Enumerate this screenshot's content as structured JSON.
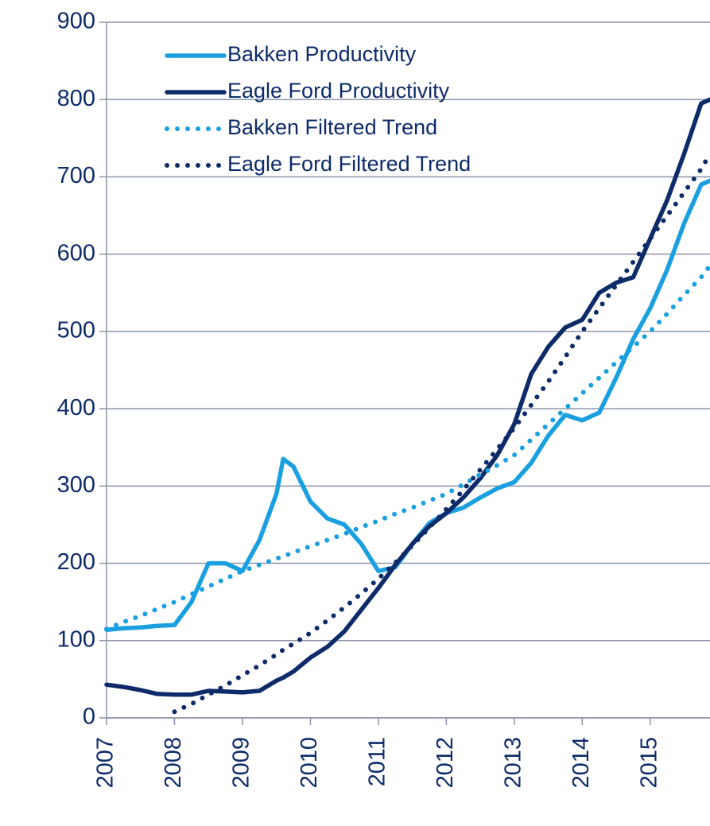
{
  "chart_data": {
    "type": "line",
    "x": [
      2007,
      2007.25,
      2007.5,
      2007.75,
      2008,
      2008.25,
      2008.5,
      2008.75,
      2009,
      2009.25,
      2009.5,
      2009.6,
      2009.75,
      2010,
      2010.25,
      2010.5,
      2010.75,
      2011,
      2011.25,
      2011.5,
      2011.75,
      2012,
      2012.25,
      2012.5,
      2012.75,
      2013,
      2013.25,
      2013.5,
      2013.75,
      2014,
      2014.25,
      2014.5,
      2014.75,
      2015,
      2015.25,
      2015.5,
      2015.75,
      2015.88
    ],
    "series": [
      {
        "name": "Bakken Productivity",
        "color": "#1aa0e0",
        "style": "solid",
        "values": [
          114,
          116,
          117,
          119,
          120,
          150,
          200,
          200,
          190,
          230,
          290,
          335,
          325,
          280,
          258,
          250,
          225,
          190,
          195,
          225,
          252,
          265,
          272,
          285,
          297,
          305,
          330,
          365,
          392,
          385,
          395,
          440,
          490,
          530,
          580,
          640,
          690,
          695
        ]
      },
      {
        "name": "Eagle Ford Productivity",
        "color": "#0d2b69",
        "style": "solid",
        "values": [
          43,
          40,
          36,
          31,
          30,
          30,
          35,
          34,
          33,
          35,
          48,
          52,
          60,
          78,
          92,
          112,
          140,
          168,
          198,
          225,
          248,
          265,
          285,
          310,
          340,
          380,
          445,
          480,
          505,
          515,
          550,
          563,
          570,
          620,
          670,
          730,
          795,
          800
        ]
      },
      {
        "name": "Bakken Filtered Trend",
        "color": "#1aa0e0",
        "style": "dotted",
        "values": [
          115,
          124,
          132,
          141,
          150,
          160,
          170,
          180,
          190,
          198,
          206,
          209,
          214,
          222,
          230,
          238,
          247,
          255,
          264,
          272,
          281,
          290,
          302,
          315,
          327,
          340,
          360,
          380,
          400,
          420,
          440,
          460,
          480,
          500,
          523,
          547,
          570,
          585
        ]
      },
      {
        "name": "Eagle Ford Filtered Trend",
        "color": "#0d2b69",
        "style": "dotted",
        "values": [
          null,
          null,
          null,
          null,
          8,
          18,
          30,
          42,
          55,
          68,
          82,
          88,
          96,
          110,
          126,
          143,
          161,
          180,
          201,
          223,
          246,
          270,
          295,
          321,
          348,
          375,
          405,
          435,
          467,
          500,
          530,
          560,
          590,
          620,
          650,
          680,
          710,
          730
        ]
      }
    ],
    "xlim": [
      2007,
      2015.88
    ],
    "xticks": [
      2007,
      2008,
      2009,
      2010,
      2011,
      2012,
      2013,
      2014,
      2015
    ],
    "ylim": [
      0,
      900
    ],
    "yticks": [
      0,
      100,
      200,
      300,
      400,
      500,
      600,
      700,
      800,
      900
    ],
    "grid": true,
    "legend": "top-left"
  }
}
